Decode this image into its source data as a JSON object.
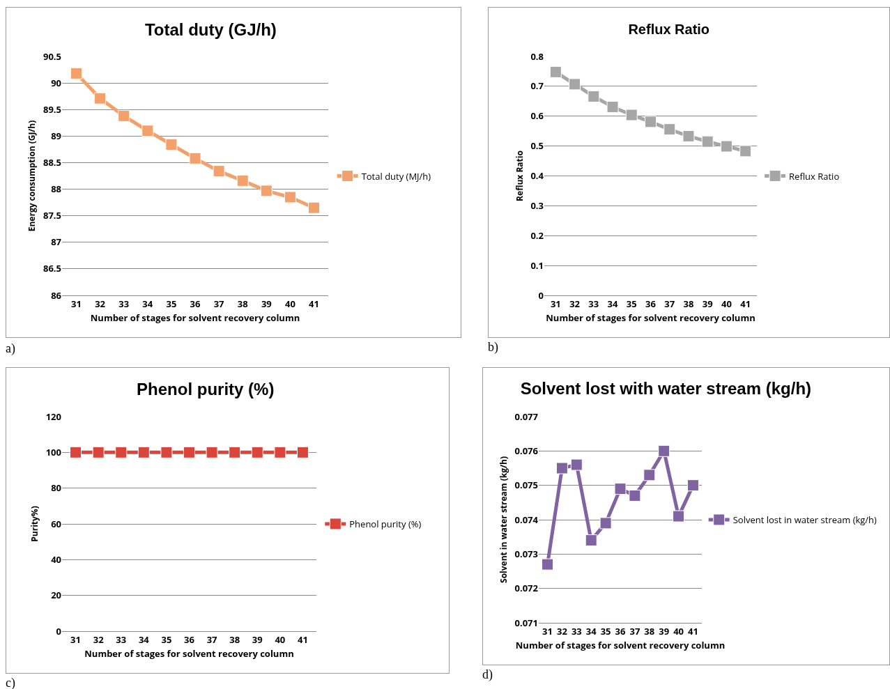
{
  "chart_data": [
    {
      "type": "line",
      "title": "Total duty (GJ/h)",
      "xlabel": "Number of stages for solvent recovery column",
      "ylabel": "Energy consumption (GJ/h)",
      "categories": [
        "31",
        "32",
        "33",
        "34",
        "35",
        "36",
        "37",
        "38",
        "39",
        "40",
        "41"
      ],
      "series": [
        {
          "name": "Total duty (MJ/h)",
          "color": "#f4a06a",
          "values": [
            90.18,
            89.71,
            89.38,
            89.1,
            88.84,
            88.58,
            88.34,
            88.16,
            87.97,
            87.85,
            87.65
          ]
        }
      ],
      "ylim": [
        86,
        90.5
      ],
      "yticks": [
        86,
        86.5,
        87,
        87.5,
        88,
        88.5,
        89,
        89.5,
        90,
        90.5
      ],
      "grid": "y",
      "legend": "right",
      "marker": "square",
      "line_style": "solid",
      "annotations": [
        "a)"
      ]
    },
    {
      "type": "line",
      "title": "Reflux Ratio",
      "xlabel": "Number of stages for solvent recovery column",
      "ylabel": "Reflux Ratio",
      "categories": [
        "31",
        "32",
        "33",
        "34",
        "35",
        "36",
        "37",
        "38",
        "39",
        "40",
        "41"
      ],
      "series": [
        {
          "name": "Reflux Ratio",
          "color": "#a6a6a6",
          "values": [
            0.748,
            0.707,
            0.666,
            0.631,
            0.604,
            0.581,
            0.556,
            0.533,
            0.515,
            0.499,
            0.483
          ]
        }
      ],
      "ylim": [
        0,
        0.8
      ],
      "yticks": [
        0,
        0.1,
        0.2,
        0.3,
        0.4,
        0.5,
        0.6,
        0.7,
        0.8
      ],
      "grid": "y",
      "legend": "right",
      "marker": "square",
      "line_style": "solid",
      "annotations": [
        "b)"
      ]
    },
    {
      "type": "line",
      "title": "Phenol purity (%)",
      "xlabel": "Number of stages for solvent recovery column",
      "ylabel": "Purity%)",
      "categories": [
        "31",
        "32",
        "33",
        "34",
        "35",
        "36",
        "37",
        "38",
        "39",
        "40",
        "41"
      ],
      "series": [
        {
          "name": "Phenol purity (%)",
          "color": "#d9453a",
          "values": [
            100,
            100,
            100,
            100,
            100,
            100,
            100,
            100,
            100,
            100,
            100
          ]
        }
      ],
      "ylim": [
        0,
        120
      ],
      "yticks": [
        0,
        20,
        40,
        60,
        80,
        100,
        120
      ],
      "grid": "y",
      "legend": "right",
      "marker": "square",
      "line_style": "solid",
      "annotations": [
        "c)"
      ]
    },
    {
      "type": "line",
      "title": "Solvent lost with water stream (kg/h)",
      "xlabel": "Number of stages for solvent recovery column",
      "ylabel": "Solvent in water stream (kg/h)",
      "categories": [
        "31",
        "32",
        "33",
        "34",
        "35",
        "36",
        "37",
        "38",
        "39",
        "40",
        "41"
      ],
      "series": [
        {
          "name": "Solvent lost in water stream (kg/h)",
          "color": "#8064a2",
          "values": [
            0.0727,
            0.0755,
            0.0756,
            0.0734,
            0.0739,
            0.0749,
            0.0747,
            0.0753,
            0.076,
            0.0741,
            0.075
          ]
        }
      ],
      "ylim": [
        0.071,
        0.077
      ],
      "yticks": [
        0.071,
        0.072,
        0.073,
        0.074,
        0.075,
        0.076,
        0.077
      ],
      "grid": "y",
      "legend": "right",
      "marker": "square",
      "line_style": "solid",
      "annotations": [
        "d)"
      ]
    }
  ]
}
